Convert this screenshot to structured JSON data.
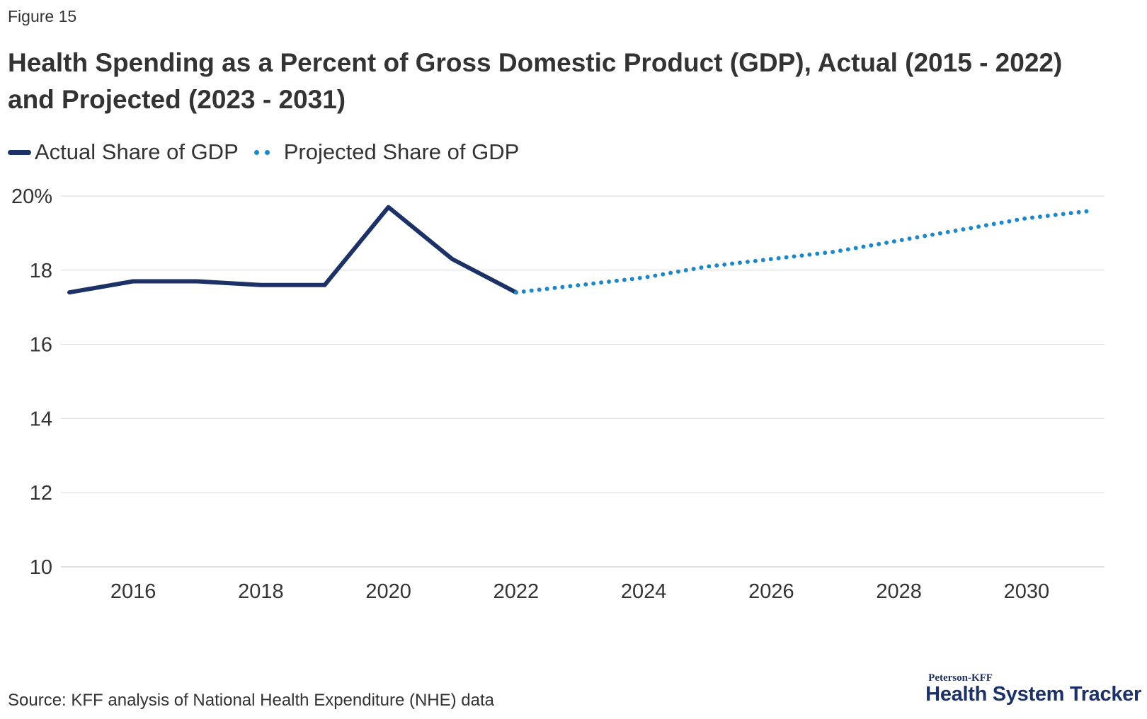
{
  "figure_label": "Figure 15",
  "title": "Health Spending as a Percent of Gross Domestic Product (GDP), Actual (2015 - 2022) and Projected (2023 - 2031)",
  "source": "Source: KFF analysis of National Health Expenditure (NHE) data",
  "brand": {
    "top": "Peterson-KFF",
    "main": "Health System Tracker"
  },
  "colors": {
    "actual": "#1c3166",
    "projected": "#1e88c7",
    "grid": "#d9d9d9",
    "text": "#333333"
  },
  "chart_data": {
    "type": "line",
    "title": "Health Spending as a Percent of Gross Domestic Product (GDP), Actual (2015 - 2022) and Projected (2023 - 2031)",
    "xlabel": "",
    "ylabel": "",
    "xlim": [
      2015,
      2031
    ],
    "ylim": [
      10,
      20
    ],
    "x_ticks": [
      2016,
      2018,
      2020,
      2022,
      2024,
      2026,
      2028,
      2030
    ],
    "y_ticks": [
      10,
      12,
      14,
      16,
      18,
      20
    ],
    "y_tick_labels": [
      "10",
      "12",
      "14",
      "16",
      "18",
      "20%"
    ],
    "grid": "horizontal",
    "legend_position": "top-left",
    "series": [
      {
        "name": "Actual Share of GDP",
        "style": "solid",
        "x": [
          2015,
          2016,
          2017,
          2018,
          2019,
          2020,
          2021,
          2022
        ],
        "y": [
          17.4,
          17.7,
          17.7,
          17.6,
          17.6,
          19.7,
          18.3,
          17.4
        ]
      },
      {
        "name": "Projected Share of GDP",
        "style": "dotted",
        "x": [
          2022,
          2023,
          2024,
          2025,
          2026,
          2027,
          2028,
          2029,
          2030,
          2031
        ],
        "y": [
          17.4,
          17.6,
          17.8,
          18.1,
          18.3,
          18.5,
          18.8,
          19.1,
          19.4,
          19.6
        ]
      }
    ]
  }
}
